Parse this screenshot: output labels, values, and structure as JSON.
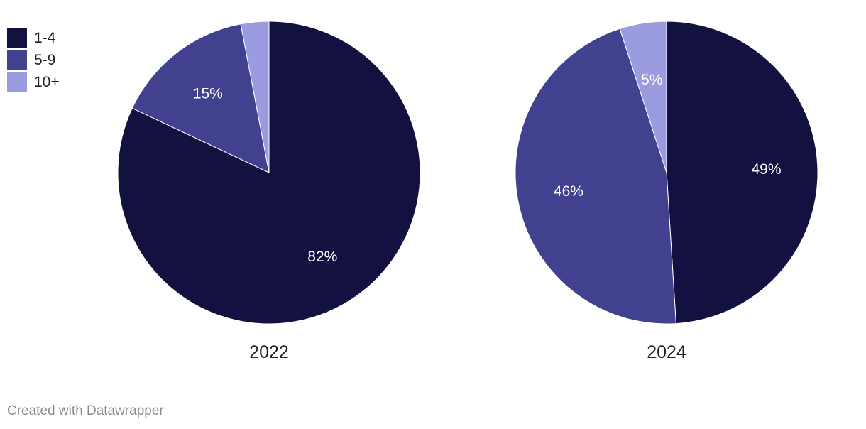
{
  "legend": [
    {
      "label": "1-4",
      "color": "#12113f"
    },
    {
      "label": "5-9",
      "color": "#414190"
    },
    {
      "label": "10+",
      "color": "#9b9be0"
    }
  ],
  "chart_data": {
    "type": "pie",
    "categories": [
      "1-4",
      "5-9",
      "10+"
    ],
    "charts": [
      {
        "title": "2022",
        "values": [
          82,
          15,
          3
        ],
        "labels": [
          "82%",
          "15%",
          ""
        ]
      },
      {
        "title": "2024",
        "values": [
          49,
          46,
          5
        ],
        "labels": [
          "49%",
          "46%",
          "5%"
        ]
      }
    ],
    "colors": [
      "#12113f",
      "#414190",
      "#9b9be0"
    ]
  },
  "footer": "Created with Datawrapper"
}
